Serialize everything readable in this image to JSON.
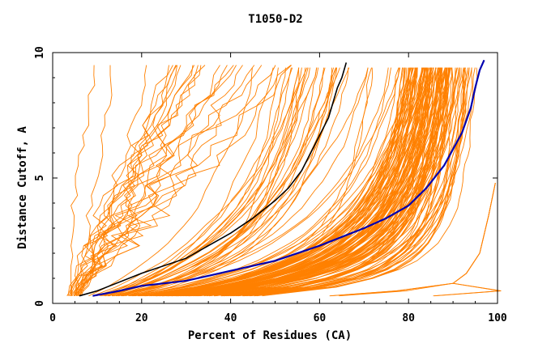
{
  "chart_data": {
    "type": "line",
    "title": "T1050-D2",
    "xlabel": "Percent of Residues (CA)",
    "ylabel": "Distance Cutoff, A",
    "xlim": [
      0,
      100
    ],
    "ylim": [
      0,
      10
    ],
    "x_ticks": [
      "0",
      "20",
      "40",
      "60",
      "80",
      "100"
    ],
    "y_ticks": [
      "0",
      "5",
      "10"
    ],
    "grid": false,
    "legend": "none",
    "colors": {
      "models": "#ff8000",
      "highlight_black": "#000000",
      "highlight_blue": "#0000b0"
    },
    "series": [
      {
        "role": "highlight_black",
        "points": [
          [
            6,
            0.3
          ],
          [
            10,
            0.5
          ],
          [
            20,
            1.2
          ],
          [
            30,
            1.8
          ],
          [
            35,
            2.3
          ],
          [
            40,
            2.8
          ],
          [
            45,
            3.4
          ],
          [
            50,
            4.1
          ],
          [
            53,
            4.6
          ],
          [
            56,
            5.3
          ],
          [
            58,
            6.0
          ],
          [
            60,
            6.7
          ],
          [
            62,
            7.4
          ],
          [
            63,
            8.0
          ],
          [
            64,
            8.6
          ],
          [
            65,
            9.0
          ],
          [
            66,
            9.6
          ]
        ]
      },
      {
        "role": "highlight_blue",
        "points": [
          [
            9,
            0.3
          ],
          [
            15,
            0.5
          ],
          [
            20,
            0.7
          ],
          [
            30,
            0.9
          ],
          [
            40,
            1.3
          ],
          [
            50,
            1.7
          ],
          [
            60,
            2.3
          ],
          [
            70,
            3.0
          ],
          [
            75,
            3.4
          ],
          [
            80,
            3.9
          ],
          [
            84,
            4.6
          ],
          [
            88,
            5.5
          ],
          [
            92,
            6.8
          ],
          [
            94,
            7.8
          ],
          [
            95,
            8.6
          ],
          [
            96,
            9.3
          ],
          [
            97,
            9.7
          ]
        ]
      }
    ]
  }
}
